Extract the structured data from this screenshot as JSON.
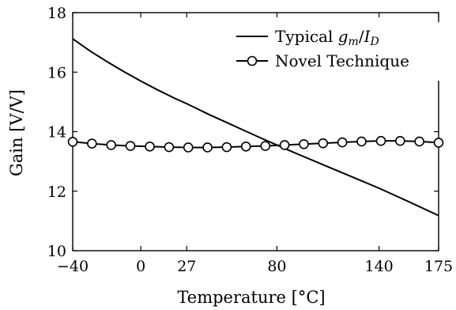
{
  "chart_data": {
    "type": "line",
    "xlabel": "Temperature [°C]",
    "ylabel": "Gain [V/V]",
    "xlim": [
      -40,
      175
    ],
    "ylim": [
      10,
      18
    ],
    "x_ticks": [
      {
        "value": -40,
        "label": "−40"
      },
      {
        "value": 0,
        "label": "0"
      },
      {
        "value": 27,
        "label": "27"
      },
      {
        "value": 80,
        "label": "80"
      },
      {
        "value": 140,
        "label": "140"
      },
      {
        "value": 175,
        "label": "175"
      }
    ],
    "y_ticks": [
      {
        "value": 10,
        "label": "10"
      },
      {
        "value": 12,
        "label": "12"
      },
      {
        "value": 14,
        "label": "14"
      },
      {
        "value": 16,
        "label": "16"
      },
      {
        "value": 18,
        "label": "18"
      }
    ],
    "grid": false,
    "legend_position": "top-right",
    "series": [
      {
        "name": "Typical gm/ID",
        "name_parts": {
          "prefix": "Typical ",
          "g": "g",
          "m": "m",
          "slash": "/",
          "I": "I",
          "D": "D"
        },
        "marker": "none",
        "color": "#000000",
        "x": [
          -40,
          -30,
          -20,
          -10,
          0,
          10,
          20,
          27,
          40,
          50,
          60,
          70,
          80,
          90,
          100,
          110,
          120,
          130,
          140,
          150,
          160,
          175
        ],
        "y": [
          17.12,
          16.72,
          16.36,
          16.02,
          15.7,
          15.4,
          15.12,
          14.94,
          14.58,
          14.32,
          14.06,
          13.8,
          13.55,
          13.3,
          13.06,
          12.82,
          12.58,
          12.34,
          12.1,
          11.84,
          11.58,
          11.18
        ]
      },
      {
        "name": "Novel Technique",
        "marker": "circle",
        "color": "#000000",
        "x": [
          -40,
          -28.7,
          -17.4,
          -6.1,
          5.3,
          16.6,
          27.9,
          39.2,
          50.5,
          61.8,
          73.2,
          84.5,
          95.8,
          107.1,
          118.4,
          129.7,
          141.1,
          152.4,
          163.7,
          175
        ],
        "y": [
          13.66,
          13.6,
          13.55,
          13.52,
          13.5,
          13.48,
          13.47,
          13.47,
          13.48,
          13.5,
          13.52,
          13.55,
          13.58,
          13.61,
          13.64,
          13.67,
          13.69,
          13.69,
          13.67,
          13.63
        ]
      }
    ]
  }
}
